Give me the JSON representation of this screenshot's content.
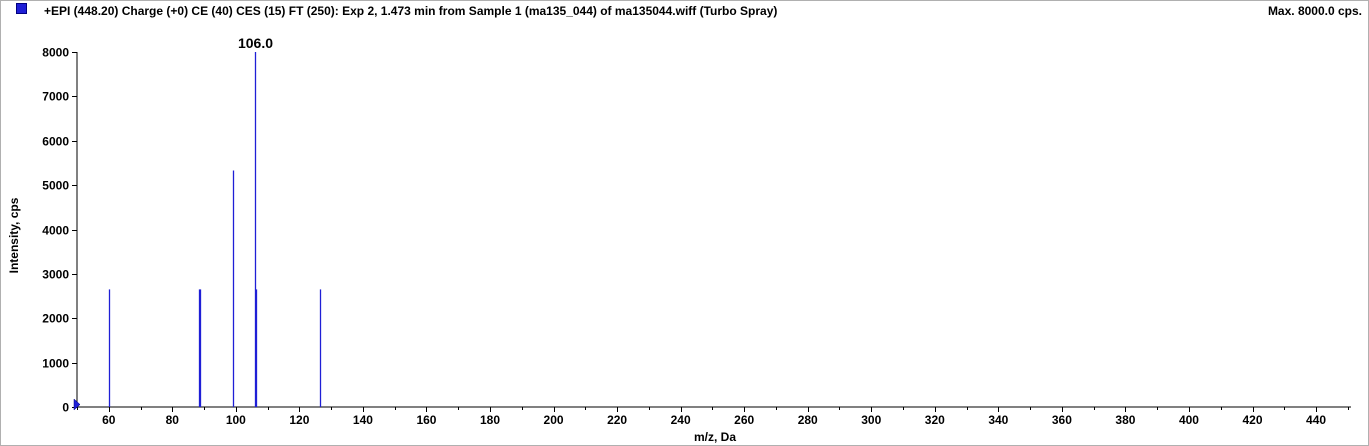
{
  "header": {
    "title": "+EPI (448.20) Charge (+0) CE (40) CES (15) FT (250): Exp 2, 1.473 min from Sample 1 (ma135_044) of ma135044.wiff (Turbo Spray)",
    "max_label": "Max. 8000.0 cps."
  },
  "colors": {
    "series": "#1f1fd6",
    "axis": "#000000"
  },
  "chart_data": {
    "type": "bar",
    "xlabel": "m/z, Da",
    "ylabel": "Intensity, cps",
    "xlim": [
      50,
      451
    ],
    "ylim": [
      0,
      8000
    ],
    "x_ticks": [
      60,
      80,
      100,
      120,
      140,
      160,
      180,
      200,
      220,
      240,
      260,
      280,
      300,
      320,
      340,
      360,
      380,
      400,
      420,
      440
    ],
    "y_ticks": [
      0,
      1000,
      2000,
      3000,
      4000,
      5000,
      6000,
      7000,
      8000
    ],
    "grid": false,
    "peaks": [
      {
        "x": 60.0,
        "y": 2650
      },
      {
        "x": 88.4,
        "y": 2650
      },
      {
        "x": 88.8,
        "y": 2650
      },
      {
        "x": 99.0,
        "y": 5330
      },
      {
        "x": 106.0,
        "y": 8000,
        "label": "106.0"
      },
      {
        "x": 106.4,
        "y": 2650
      },
      {
        "x": 126.4,
        "y": 2650
      }
    ]
  }
}
